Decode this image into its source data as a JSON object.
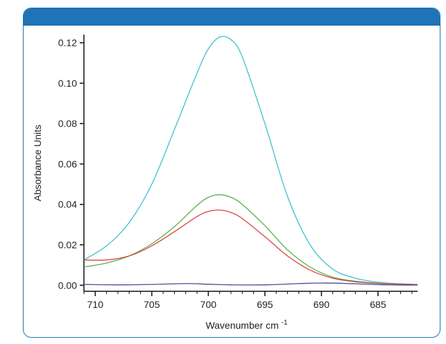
{
  "chart_data": {
    "type": "line",
    "xlabel": "Wavenumber cm",
    "xlabel_superscript": "-1",
    "ylabel": "Absorbance Units",
    "xlim": [
      711.0,
      681.5
    ],
    "ylim": [
      -0.003,
      0.124
    ],
    "x_reversed": true,
    "x_ticks": [
      710,
      705,
      700,
      695,
      690,
      685
    ],
    "y_ticks": [
      0.0,
      0.02,
      0.04,
      0.06,
      0.08,
      0.1,
      0.12
    ],
    "y_tick_labels": [
      "0.00",
      "0.02",
      "0.04",
      "0.06",
      "0.08",
      "0.10",
      "0.12"
    ],
    "grid": false,
    "series": [
      {
        "color": "#3fbfd0",
        "x": [
          711,
          709,
          707,
          705,
          703,
          701,
          700,
          699,
          698,
          697,
          695,
          693,
          691,
          689,
          687,
          685,
          683,
          681.5
        ],
        "y": [
          0.0125,
          0.0195,
          0.031,
          0.05,
          0.077,
          0.105,
          0.117,
          0.1228,
          0.1215,
          0.113,
          0.08,
          0.044,
          0.02,
          0.008,
          0.0035,
          0.0015,
          0.0007,
          0.0004
        ]
      },
      {
        "color": "#55b04a",
        "x": [
          711,
          709,
          707,
          705,
          703,
          701,
          700,
          699,
          698,
          697,
          695,
          693,
          691,
          689,
          687,
          685,
          683,
          681.5
        ],
        "y": [
          0.009,
          0.011,
          0.0145,
          0.0205,
          0.029,
          0.0395,
          0.0435,
          0.0448,
          0.0435,
          0.04,
          0.0295,
          0.0175,
          0.009,
          0.004,
          0.002,
          0.001,
          0.0005,
          0.0003
        ]
      },
      {
        "color": "#d9423f",
        "x": [
          711,
          709,
          707,
          705,
          703,
          701,
          700,
          699,
          698,
          697,
          695,
          693,
          691,
          689,
          687,
          685,
          683,
          681.5
        ],
        "y": [
          0.0125,
          0.0125,
          0.0145,
          0.0195,
          0.0265,
          0.034,
          0.0365,
          0.0372,
          0.036,
          0.033,
          0.024,
          0.0145,
          0.0075,
          0.0035,
          0.0017,
          0.0009,
          0.0005,
          0.0003
        ]
      },
      {
        "color": "#4a4a9a",
        "x": [
          711,
          708,
          705,
          702,
          700,
          698,
          695,
          692,
          690,
          688,
          685,
          683,
          681.5
        ],
        "y": [
          0.0004,
          0.0002,
          0.0004,
          0.0008,
          0.0005,
          0.0002,
          0.0002,
          0.0008,
          0.0011,
          0.0009,
          0.0003,
          0.0001,
          0.0001
        ]
      }
    ]
  }
}
